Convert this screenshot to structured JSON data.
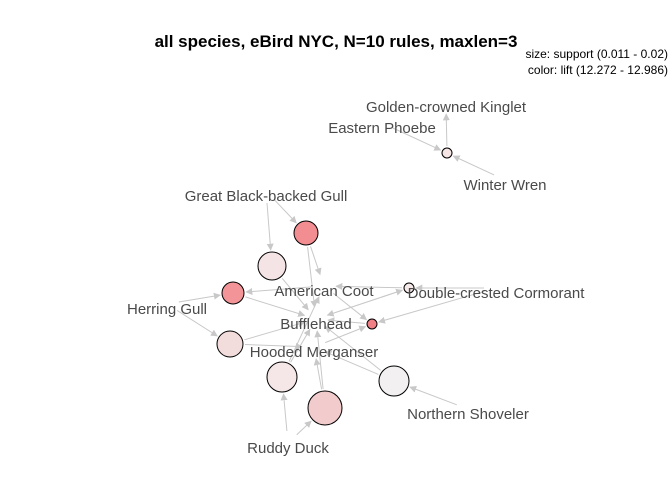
{
  "title": "all species, eBird NYC, N=10 rules, maxlen=3",
  "legend": {
    "size": "size: support (0.011 - 0.02)",
    "color": "color: lift (12.272 - 12.986)"
  },
  "items": [
    {
      "id": "golden_crowned_kinglet",
      "label": "Golden-crowned Kinglet"
    },
    {
      "id": "eastern_phoebe",
      "label": "Eastern Phoebe"
    },
    {
      "id": "winter_wren",
      "label": "Winter Wren"
    },
    {
      "id": "great_black_backed_gull",
      "label": "Great Black-backed Gull"
    },
    {
      "id": "american_coot",
      "label": "American Coot"
    },
    {
      "id": "double_crested_cormorant",
      "label": "Double-crested Cormorant"
    },
    {
      "id": "herring_gull",
      "label": "Herring Gull"
    },
    {
      "id": "bufflehead",
      "label": "Bufflehead"
    },
    {
      "id": "hooded_merganser",
      "label": "Hooded Merganser"
    },
    {
      "id": "northern_shoveler",
      "label": "Northern Shoveler"
    },
    {
      "id": "ruddy_duck",
      "label": "Ruddy Duck"
    }
  ],
  "rules": [
    {
      "id": "r1",
      "fill": "#f7e6e6"
    },
    {
      "id": "r2",
      "fill": "#f28e92"
    },
    {
      "id": "r3",
      "fill": "#f5e4e5"
    },
    {
      "id": "r4",
      "fill": "#f29498"
    },
    {
      "id": "r5",
      "fill": "#f5e9e9"
    },
    {
      "id": "r6",
      "fill": "#f2dcdc"
    },
    {
      "id": "r7",
      "fill": "#f5e7e7"
    },
    {
      "id": "r8",
      "fill": "#f2cbcd"
    },
    {
      "id": "r9",
      "fill": "#f2f0f0"
    },
    {
      "id": "r10",
      "fill": "#f08085"
    }
  ]
}
